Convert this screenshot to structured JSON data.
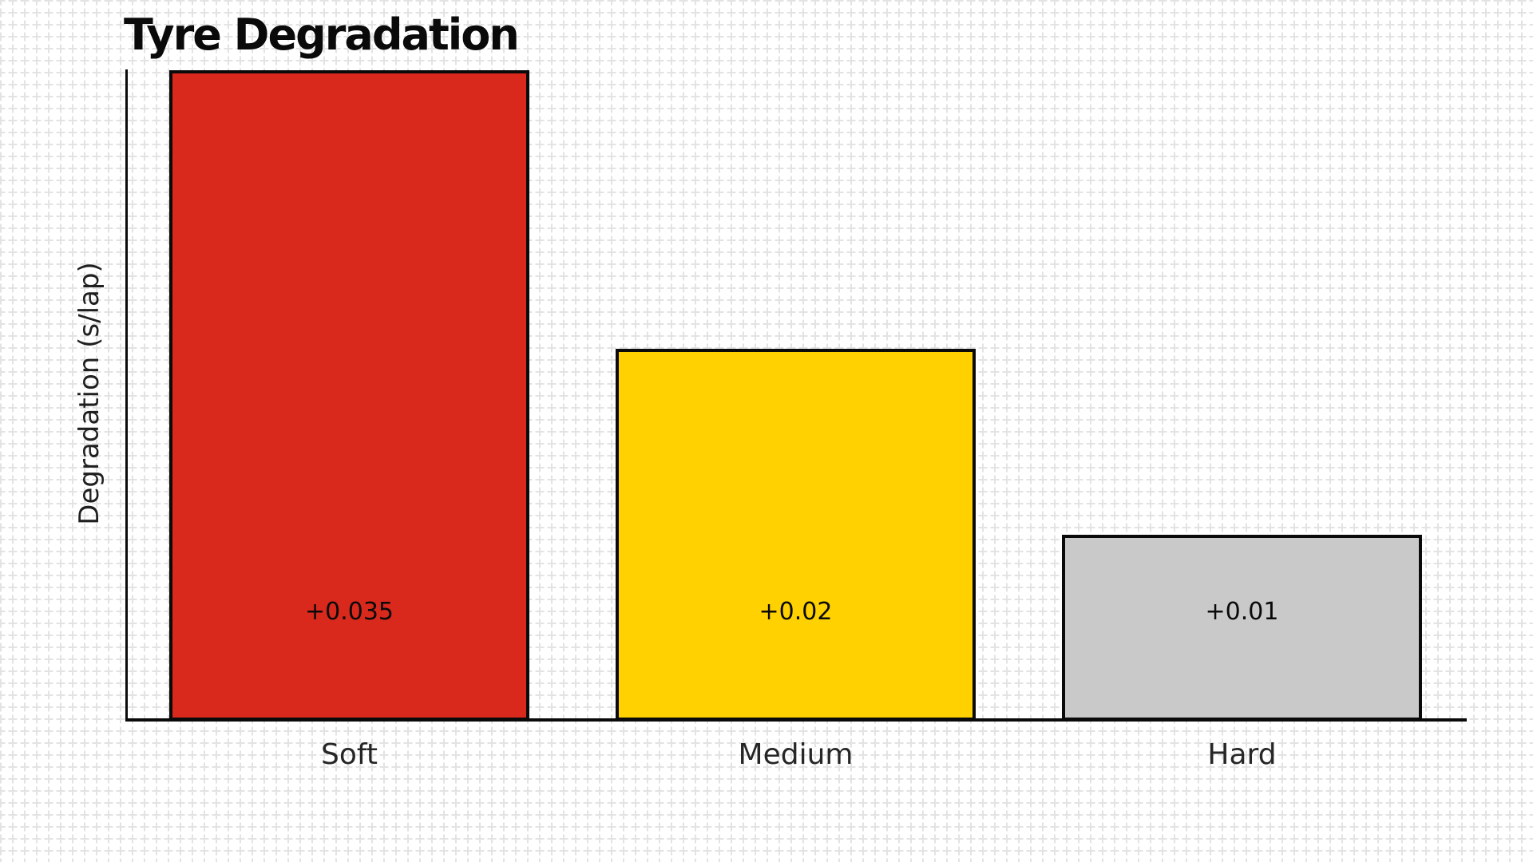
{
  "chart_data": {
    "type": "bar",
    "title": "Tyre Degradation",
    "xlabel": "",
    "ylabel": "Degradation (s/lap)",
    "categories": [
      "Soft",
      "Medium",
      "Hard"
    ],
    "values": [
      0.035,
      0.02,
      0.01
    ],
    "value_labels": [
      "+0.035",
      "+0.02",
      "+0.01"
    ],
    "bar_colors": [
      "#D9291C",
      "#FFD100",
      "#C9C9C9"
    ],
    "bar_edge_color": "#0A0A0A",
    "axis_color": "#0A0A0A",
    "ylim": [
      0,
      0.035
    ],
    "grid": false,
    "legend": false,
    "yticks": [],
    "background": "white graph-paper cross grid"
  }
}
